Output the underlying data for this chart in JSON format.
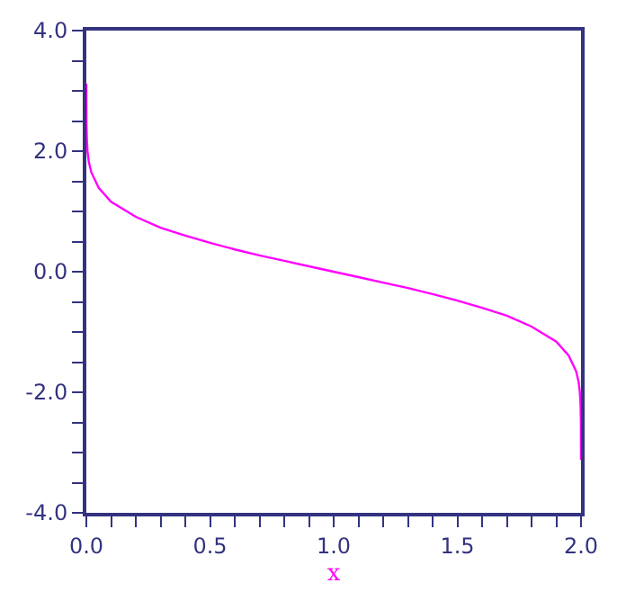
{
  "chart_data": {
    "type": "line",
    "xlabel": "x",
    "x": [
      1e-05,
      0.0005,
      0.002,
      0.005,
      0.01,
      0.02,
      0.05,
      0.1,
      0.2,
      0.3,
      0.4,
      0.5,
      0.6,
      0.7,
      0.8,
      0.9,
      1.0,
      1.1,
      1.2,
      1.3,
      1.4,
      1.5,
      1.6,
      1.7,
      1.8,
      1.9,
      1.95,
      1.98,
      1.99,
      1.995,
      1.998,
      1.9995,
      1.99999
    ],
    "series": [
      {
        "color": "#ff00ff",
        "values": [
          3.12,
          2.47,
          2.19,
          1.99,
          1.82,
          1.65,
          1.39,
          1.16,
          0.91,
          0.73,
          0.6,
          0.48,
          0.37,
          0.27,
          0.18,
          0.09,
          0.0,
          -0.09,
          -0.18,
          -0.27,
          -0.37,
          -0.48,
          -0.6,
          -0.73,
          -0.91,
          -1.16,
          -1.39,
          -1.65,
          -1.82,
          -1.99,
          -2.19,
          -2.47,
          -3.12
        ]
      }
    ],
    "xlim": [
      0,
      2
    ],
    "ylim": [
      -4,
      4
    ],
    "xticks": [
      {
        "value": 0,
        "label": "0.0"
      },
      {
        "value": 0.1,
        "label": null
      },
      {
        "value": 0.2,
        "label": null
      },
      {
        "value": 0.3,
        "label": null
      },
      {
        "value": 0.4,
        "label": null
      },
      {
        "value": 0.5,
        "label": "0.5"
      },
      {
        "value": 0.6,
        "label": null
      },
      {
        "value": 0.7,
        "label": null
      },
      {
        "value": 0.8,
        "label": null
      },
      {
        "value": 0.9,
        "label": null
      },
      {
        "value": 1.0,
        "label": "1.0"
      },
      {
        "value": 1.1,
        "label": null
      },
      {
        "value": 1.2,
        "label": null
      },
      {
        "value": 1.3,
        "label": null
      },
      {
        "value": 1.4,
        "label": null
      },
      {
        "value": 1.5,
        "label": "1.5"
      },
      {
        "value": 1.6,
        "label": null
      },
      {
        "value": 1.7,
        "label": null
      },
      {
        "value": 1.8,
        "label": null
      },
      {
        "value": 1.9,
        "label": null
      },
      {
        "value": 2.0,
        "label": "2.0"
      }
    ],
    "yticks": [
      {
        "value": -4,
        "label": "-4.0"
      },
      {
        "value": -3.5,
        "label": null
      },
      {
        "value": -3,
        "label": null
      },
      {
        "value": -2.5,
        "label": null
      },
      {
        "value": -2,
        "label": "-2.0"
      },
      {
        "value": -1.5,
        "label": null
      },
      {
        "value": -1,
        "label": null
      },
      {
        "value": -0.5,
        "label": null
      },
      {
        "value": 0,
        "label": "0.0"
      },
      {
        "value": 0.5,
        "label": null
      },
      {
        "value": 1,
        "label": null
      },
      {
        "value": 1.5,
        "label": null
      },
      {
        "value": 2,
        "label": "2.0"
      },
      {
        "value": 2.5,
        "label": null
      },
      {
        "value": 3,
        "label": null
      },
      {
        "value": 3.5,
        "label": null
      },
      {
        "value": 4,
        "label": "4.0"
      }
    ],
    "legend": false,
    "marker": "none",
    "line_style": "solid"
  }
}
